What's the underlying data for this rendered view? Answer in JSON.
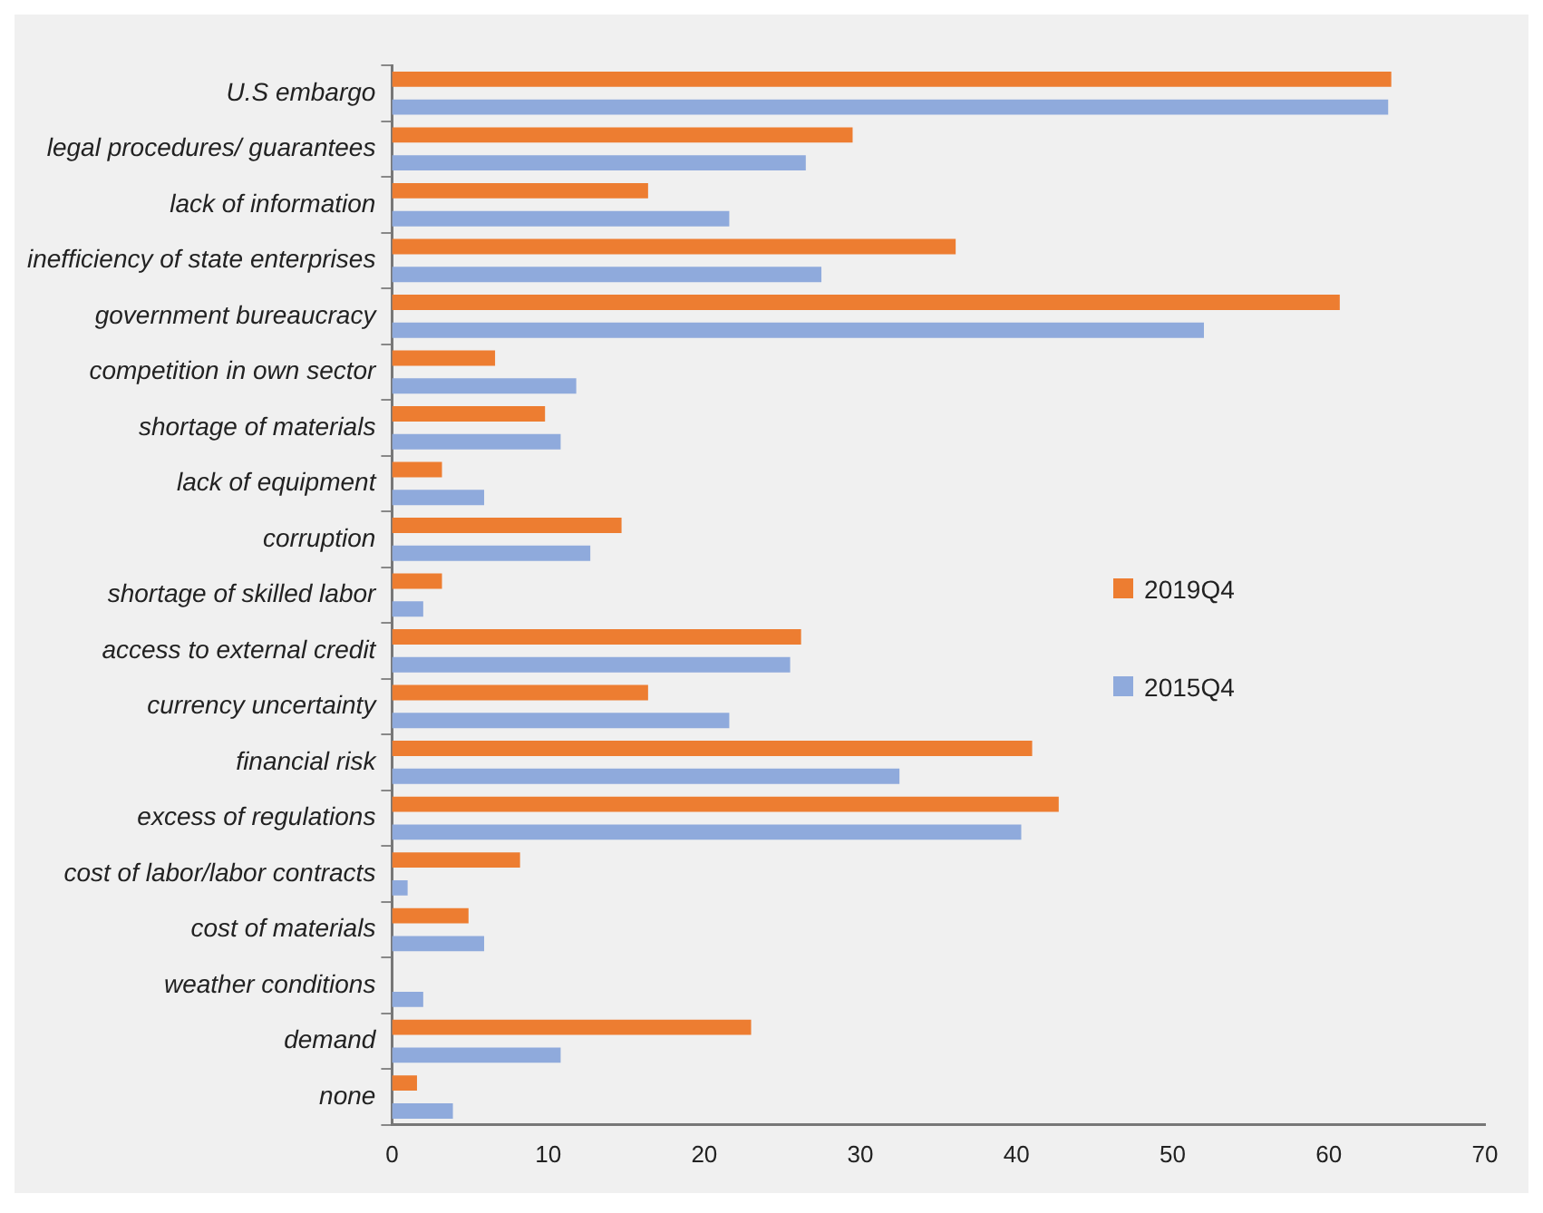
{
  "chart_data": {
    "type": "bar",
    "orientation": "horizontal",
    "categories": [
      "U.S embargo",
      "legal procedures/ guarantees",
      "lack of information",
      "inefficiency of state enterprises",
      "government bureaucracy",
      "competition in own sector",
      "shortage of materials",
      "lack of equipment",
      "corruption",
      "shortage of skilled labor",
      "access to external credit",
      "currency uncertainty",
      "financial risk",
      "excess of regulations",
      "cost of labor/labor contracts",
      "cost of materials",
      "weather conditions",
      "demand",
      "none"
    ],
    "series": [
      {
        "name": "2019Q4",
        "color": "#ed7d31",
        "values": [
          64.0,
          29.5,
          16.4,
          36.1,
          60.7,
          6.6,
          9.8,
          3.2,
          14.7,
          3.2,
          26.2,
          16.4,
          41.0,
          42.7,
          8.2,
          4.9,
          null,
          23.0,
          1.6
        ]
      },
      {
        "name": "2015Q4",
        "color": "#8faadc",
        "values": [
          63.8,
          26.5,
          21.6,
          27.5,
          52.0,
          11.8,
          10.8,
          5.9,
          12.7,
          2.0,
          25.5,
          21.6,
          32.5,
          40.3,
          1.0,
          5.9,
          2.0,
          10.8,
          3.9
        ]
      }
    ],
    "xlim": [
      0,
      70
    ],
    "xticks": [
      0,
      10,
      20,
      30,
      40,
      50,
      60,
      70
    ],
    "grid": false,
    "legend": "right"
  }
}
